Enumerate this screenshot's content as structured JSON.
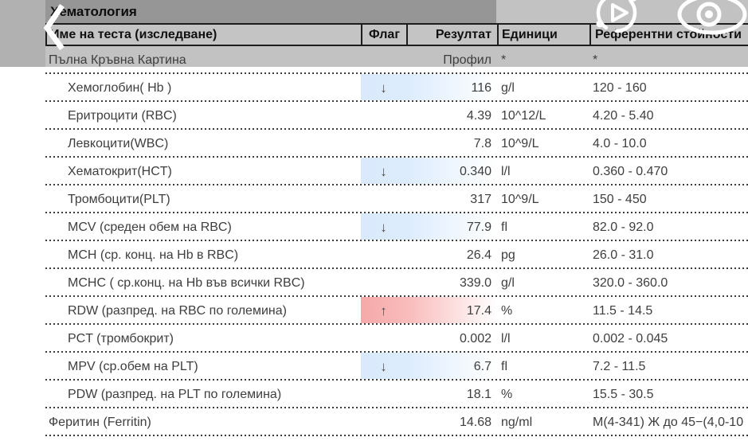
{
  "toolbar": {
    "title": "Хематология",
    "back_icon": "chevron-left",
    "replay_icon": "replay-play",
    "eye_icon": "visibility"
  },
  "table": {
    "columns": [
      "Име на теста (изследване)",
      "Флаг",
      "Резултат",
      "Единици",
      "Референтни стойности"
    ],
    "rows": [
      {
        "name": "Пълна Кръвна Картина",
        "flag": "",
        "result": "Профил",
        "units": "*",
        "ref": "*",
        "indent": false,
        "highlight": "none"
      },
      {
        "name": "Хемоглобин( Hb )",
        "flag": "↓",
        "result": "116",
        "units": "g/l",
        "ref": "120 - 160",
        "indent": true,
        "highlight": "low"
      },
      {
        "name": "Еритроцити (RBC)",
        "flag": "",
        "result": "4.39",
        "units": "10^12/L",
        "ref": "4.20 - 5.40",
        "indent": true,
        "highlight": "none"
      },
      {
        "name": "Левкоцити(WBC)",
        "flag": "",
        "result": "7.8",
        "units": "10^9/L",
        "ref": "4.0 - 10.0",
        "indent": true,
        "highlight": "none"
      },
      {
        "name": "Хематокрит(HCT)",
        "flag": "↓",
        "result": "0.340",
        "units": "l/l",
        "ref": "0.360 - 0.470",
        "indent": true,
        "highlight": "low"
      },
      {
        "name": "Тромбоцити(PLT)",
        "flag": "",
        "result": "317",
        "units": "10^9/L",
        "ref": "150 - 450",
        "indent": true,
        "highlight": "none"
      },
      {
        "name": "MCV (среден обем на RBC)",
        "flag": "↓",
        "result": "77.9",
        "units": "fl",
        "ref": "82.0 - 92.0",
        "indent": true,
        "highlight": "low"
      },
      {
        "name": "MCH (ср. конц. на Hb в RBC)",
        "flag": "",
        "result": "26.4",
        "units": "pg",
        "ref": "26.0 - 31.0",
        "indent": true,
        "highlight": "none"
      },
      {
        "name": "MCHC ( ср.конц. на Hb във всички RBC)",
        "flag": "",
        "result": "339.0",
        "units": "g/l",
        "ref": "320.0 - 360.0",
        "indent": true,
        "highlight": "none"
      },
      {
        "name": "RDW (разпред. на RBC по големина)",
        "flag": "↑",
        "result": "17.4",
        "units": "%",
        "ref": "11.5 - 14.5",
        "indent": true,
        "highlight": "high"
      },
      {
        "name": "PCT (тромбокрит)",
        "flag": "",
        "result": "0.002",
        "units": "l/l",
        "ref": "0.002 - 0.045",
        "indent": true,
        "highlight": "none"
      },
      {
        "name": "MPV (ср.обем на PLT)",
        "flag": "↓",
        "result": "6.7",
        "units": "fl",
        "ref": "7.2 - 11.5",
        "indent": true,
        "highlight": "low"
      },
      {
        "name": "PDW (разпред. на PLT по големина)",
        "flag": "",
        "result": "18.1",
        "units": "%",
        "ref": "15.5 - 30.5",
        "indent": true,
        "highlight": "none"
      },
      {
        "name": "Феритин (Ferritin)",
        "flag": "",
        "result": "14.68",
        "units": "ng/ml",
        "ref": "М(4-341) Ж до 45−(4,0-10",
        "indent": false,
        "highlight": "none"
      }
    ]
  },
  "colors": {
    "title_band": "#969696",
    "scrim": "#c2c2c2",
    "left_strip": "#b1b1b1",
    "low_flag_blue": "#d9eafc",
    "high_flag_red": "#f6a9a9",
    "border": "#1d1d1d"
  }
}
